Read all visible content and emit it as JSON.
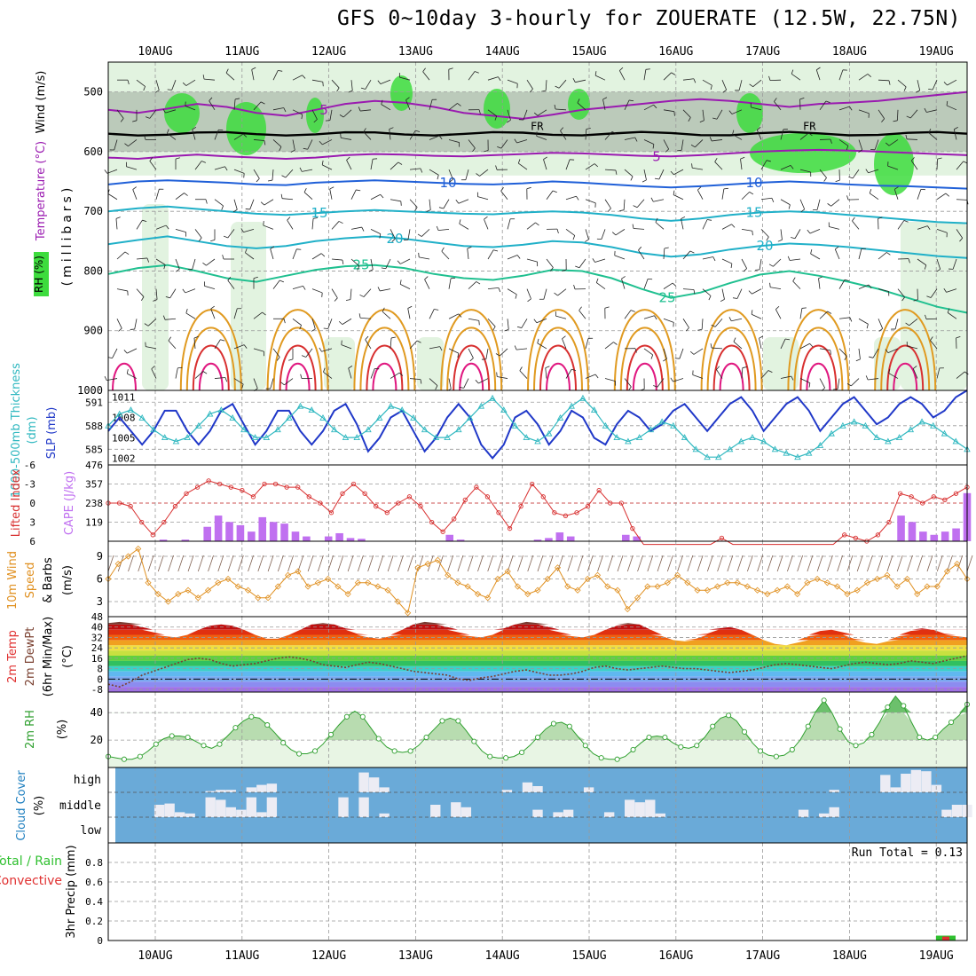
{
  "title": "GFS 0~10day 3-hourly for ZOUERATE (12.5W, 22.75N)",
  "colors": {
    "rh_green": "#3ddc3d",
    "rh_light": "#e2f3e0",
    "rh_grey": "#9aa89a",
    "temp_purple": "#9a1ab0",
    "temp_blue": "#2060d8",
    "temp_cyan": "#20b0c8",
    "temp_teal": "#20c090",
    "temp_orange": "#e09a20",
    "temp_red": "#d83030",
    "temp_pink": "#e01880",
    "slp_line": "#2038c8",
    "thickness_line": "#30b8c0",
    "lifted_line": "#d83030",
    "cape_bar": "#c070f0",
    "wind_line": "#e09020",
    "barb": "#806050",
    "cloud_bg": "#6aaad8",
    "cloud_bar": "#ececf4",
    "rh2m_line": "#30a030",
    "precip_green": "#30c030",
    "precip_red": "#e03030"
  },
  "chart_data": {
    "type": "meteogram",
    "days": [
      "10AUG",
      "11AUG",
      "12AUG",
      "13AUG",
      "14AUG",
      "15AUG",
      "16AUG",
      "17AUG",
      "18AUG",
      "19AUG"
    ],
    "run_total_label": "Run Total = 0.13",
    "panels": [
      {
        "id": "upper_air",
        "ylabel_parts": [
          "RH (%)",
          "Temperature (°C)",
          "Wind (m/s)",
          "(millibars)"
        ],
        "yticks": [
          500,
          600,
          700,
          800,
          900,
          1000
        ],
        "ylim": [
          450,
          1000
        ],
        "freezing_label": "FR",
        "freezing_level_mb": 570,
        "isotherms": [
          {
            "label": "5",
            "mb": [
              530,
              535,
              528,
              520,
              525,
              535,
              540,
              530,
              520,
              515,
              518,
              525,
              535,
              540,
              545,
              538,
              530,
              525,
              520,
              515,
              512,
              515,
              520,
              525,
              520,
              518,
              515,
              510,
              505,
              500
            ]
          },
          {
            "label": "5",
            "mb": [
              610,
              612,
              608,
              605,
              608,
              610,
              612,
              610,
              606,
              604,
              605,
              607,
              608,
              606,
              604,
              602,
              603,
              605,
              607,
              608,
              606,
              603,
              600,
              598,
              597,
              598,
              600,
              602,
              604,
              606
            ]
          },
          {
            "label": "10",
            "mb": [
              655,
              650,
              648,
              650,
              652,
              655,
              656,
              652,
              650,
              648,
              650,
              652,
              654,
              655,
              653,
              650,
              652,
              655,
              658,
              660,
              658,
              655,
              652,
              650,
              652,
              655,
              657,
              658,
              660,
              662
            ]
          },
          {
            "label": "15",
            "mb": [
              700,
              695,
              692,
              696,
              700,
              704,
              706,
              703,
              700,
              698,
              700,
              702,
              704,
              705,
              702,
              700,
              702,
              706,
              712,
              716,
              712,
              706,
              702,
              700,
              702,
              706,
              710,
              714,
              718,
              720
            ]
          },
          {
            "label": "20",
            "mb": [
              755,
              748,
              742,
              750,
              758,
              762,
              758,
              750,
              745,
              742,
              746,
              752,
              758,
              760,
              756,
              750,
              752,
              760,
              770,
              776,
              772,
              764,
              758,
              754,
              756,
              760,
              765,
              770,
              775,
              778
            ]
          },
          {
            "label": "25",
            "mb": [
              805,
              795,
              790,
              800,
              812,
              818,
              808,
              798,
              792,
              790,
              795,
              805,
              812,
              815,
              808,
              798,
              800,
              812,
              830,
              845,
              836,
              820,
              806,
              800,
              808,
              818,
              830,
              845,
              860,
              870
            ]
          }
        ],
        "rh_levels": [
          30,
          50
        ]
      },
      {
        "id": "slp_thickness",
        "left_ylabel": "1000-500mb Thickness (dm)",
        "right_ylabel": "SLP (mb)",
        "thickness_ticks": [
          585,
          588,
          591
        ],
        "slp_ticks": [
          1002,
          1005,
          1008,
          1011
        ],
        "thickness_range": [
          583,
          592.5
        ],
        "slp_range": [
          1001,
          1012
        ],
        "slp": [
          1006,
          1008,
          1006,
          1004,
          1006,
          1009,
          1009,
          1006,
          1004,
          1006,
          1009,
          1010,
          1007,
          1004,
          1006,
          1009,
          1009,
          1006,
          1004,
          1006,
          1009,
          1010,
          1007,
          1003,
          1005,
          1008,
          1009,
          1006,
          1003,
          1005,
          1008,
          1010,
          1008,
          1004,
          1002,
          1004,
          1008,
          1009,
          1007,
          1004,
          1006,
          1009,
          1008,
          1005,
          1004,
          1007,
          1009,
          1008,
          1006,
          1007,
          1009,
          1010,
          1008,
          1006,
          1008,
          1010,
          1011,
          1009,
          1006,
          1008,
          1010,
          1011,
          1009,
          1006,
          1008,
          1010,
          1011,
          1009,
          1007,
          1008,
          1010,
          1011,
          1010,
          1008,
          1009,
          1011,
          1012
        ],
        "thickness": [
          588,
          589.5,
          590,
          589,
          587.5,
          586.5,
          586,
          586.5,
          588,
          589.5,
          590,
          589,
          587.5,
          586.5,
          586.5,
          587.5,
          589,
          590.5,
          590,
          589,
          587.5,
          586.5,
          586.5,
          587.5,
          589,
          590.5,
          590,
          589,
          587.5,
          586.5,
          586.5,
          587.5,
          589,
          590.5,
          591.5,
          590,
          588,
          586.5,
          586,
          587,
          589,
          590.5,
          591.5,
          590,
          588,
          586.5,
          586,
          586.5,
          587.5,
          588.5,
          588,
          586.5,
          585,
          584,
          584,
          585,
          586,
          586.5,
          586,
          585,
          584.5,
          584,
          584.5,
          585.5,
          587,
          588,
          588.5,
          588,
          586.5,
          586,
          586.5,
          587.5,
          588.5,
          588,
          587,
          586,
          585
        ]
      },
      {
        "id": "stability",
        "left_ylabel": "Lifted Index",
        "right_ylabel": "CAPE (J/kg)",
        "li_ticks": [
          -6,
          -3,
          0,
          3,
          6
        ],
        "cape_ticks": [
          119,
          238,
          357,
          476
        ],
        "cape_range": [
          0,
          476
        ],
        "lifted_index": [
          0,
          0,
          0.5,
          3,
          5,
          3,
          0.5,
          -1.5,
          -2.5,
          -3.5,
          -3,
          -2.5,
          -2,
          -1,
          -3,
          -3,
          -2.5,
          -2.5,
          -1,
          0,
          1.5,
          -1.5,
          -3,
          -1.5,
          0.5,
          1.5,
          0,
          -1,
          0.5,
          3,
          4.5,
          2.5,
          -0.5,
          -2.5,
          -1,
          1.5,
          4,
          0.5,
          -3,
          -1,
          1.5,
          2,
          1.5,
          0.5,
          -2,
          0,
          0,
          4,
          7,
          7.5,
          7,
          6.5,
          6.5,
          7,
          7,
          5.5,
          7,
          7.5,
          7.5,
          7,
          7.5,
          7,
          6.5,
          7,
          7.5,
          6.5,
          5,
          5.5,
          6,
          5,
          3,
          -1.5,
          -1,
          0,
          -1,
          -0.5,
          -1.5,
          -2.5
        ],
        "cape": [
          0,
          0,
          0,
          0,
          0,
          10,
          0,
          10,
          0,
          90,
          160,
          120,
          100,
          60,
          150,
          120,
          110,
          60,
          30,
          0,
          30,
          50,
          20,
          15,
          0,
          0,
          0,
          0,
          0,
          0,
          0,
          40,
          10,
          0,
          0,
          0,
          0,
          0,
          0,
          10,
          20,
          55,
          30,
          0,
          0,
          0,
          0,
          40,
          30,
          0,
          0,
          0,
          0,
          0,
          0,
          0,
          0,
          0,
          0,
          0,
          0,
          0,
          0,
          0,
          0,
          0,
          0,
          0,
          0,
          0,
          0,
          0,
          160,
          120,
          60,
          40,
          60,
          80,
          300
        ]
      },
      {
        "id": "wind10m",
        "ylabel_parts": [
          "10m Wind",
          "Speed",
          "& Barbs",
          "(m/s)"
        ],
        "yticks": [
          3,
          6,
          9
        ],
        "ylim": [
          1,
          11
        ],
        "speed": [
          6,
          8,
          9,
          10,
          5.5,
          4,
          3,
          4,
          4.5,
          3.5,
          4.5,
          5.5,
          6,
          5,
          4.5,
          3.5,
          3.5,
          5,
          6.5,
          7,
          5,
          5.5,
          6,
          5,
          4,
          5.5,
          5.5,
          5,
          4.5,
          3,
          1.5,
          7.5,
          8,
          8.5,
          6.5,
          5.5,
          5,
          4,
          3.5,
          6,
          7,
          5,
          4,
          4.5,
          6,
          7.5,
          5,
          4.5,
          6,
          6.5,
          5,
          4.5,
          2,
          3.5,
          5,
          5,
          5.5,
          6.5,
          5.5,
          4.5,
          4.5,
          5,
          5.5,
          5.5,
          5,
          4.5,
          4,
          4.5,
          5,
          4,
          5.5,
          6,
          5.5,
          5,
          4,
          4.5,
          5.5,
          6,
          6.5,
          5,
          6,
          4,
          5,
          5,
          7,
          8,
          6
        ]
      },
      {
        "id": "temp2m",
        "ylabel_parts": [
          "2m Temp",
          "2m DewPt",
          "(6hr Min/Max)",
          "(°C)"
        ],
        "yticks": [
          -8,
          0,
          8,
          16,
          24,
          32,
          40,
          48
        ],
        "ylim": [
          -10,
          48
        ],
        "band_step": 4,
        "temperature": [
          43,
          44,
          43,
          40,
          36,
          33,
          32,
          34,
          38,
          41,
          42,
          41,
          38,
          34,
          31,
          31,
          34,
          38,
          42,
          43,
          42,
          39,
          35,
          32,
          31,
          33,
          38,
          42,
          44,
          43,
          40,
          36,
          33,
          32,
          34,
          39,
          42,
          44,
          43,
          40,
          36,
          33,
          32,
          34,
          38,
          41,
          43,
          42,
          38,
          33,
          30,
          29,
          31,
          35,
          39,
          40,
          38,
          34,
          30,
          27,
          26,
          28,
          33,
          37,
          38,
          36,
          31,
          28,
          27,
          29,
          33,
          37,
          39,
          38,
          35,
          33,
          32
        ],
        "dewpoint": [
          -4,
          -6,
          -2,
          3,
          6,
          9,
          12,
          15,
          16,
          15,
          12,
          10,
          11,
          12,
          14,
          16,
          17,
          16,
          14,
          11,
          10,
          9,
          11,
          13,
          12,
          10,
          8,
          6,
          5,
          4,
          3,
          0,
          -1,
          1,
          2,
          4,
          6,
          7,
          5,
          3,
          3,
          4,
          6,
          9,
          10,
          8,
          7,
          8,
          9,
          10,
          9,
          8,
          8,
          7,
          6,
          5,
          6,
          7,
          9,
          11,
          12,
          11,
          10,
          9,
          8,
          10,
          12,
          13,
          12,
          11,
          12,
          14,
          13,
          12,
          14,
          16,
          18
        ]
      },
      {
        "id": "rh2m",
        "ylabel": "2m RH",
        "yunit": "(%)",
        "yticks": [
          20,
          40
        ],
        "ylim": [
          0,
          55
        ],
        "rh": [
          8,
          7,
          6,
          6,
          8,
          12,
          17,
          21,
          23,
          23,
          22,
          19,
          16,
          14,
          17,
          23,
          29,
          34,
          37,
          36,
          31,
          25,
          18,
          13,
          10,
          10,
          12,
          17,
          24,
          31,
          37,
          41,
          37,
          29,
          21,
          15,
          12,
          11,
          12,
          16,
          22,
          28,
          34,
          36,
          34,
          27,
          19,
          12,
          8,
          7,
          7,
          8,
          11,
          16,
          22,
          28,
          32,
          33,
          30,
          23,
          16,
          10,
          7,
          6,
          6,
          8,
          13,
          18,
          22,
          23,
          22,
          18,
          15,
          14,
          16,
          22,
          30,
          36,
          38,
          34,
          26,
          18,
          12,
          9,
          8,
          9,
          13,
          20,
          30,
          41,
          49,
          40,
          28,
          19,
          16,
          18,
          24,
          33,
          44,
          52,
          45,
          33,
          22,
          20,
          22,
          28,
          33,
          38,
          46
        ],
        "shade_levels": [
          20,
          40
        ]
      },
      {
        "id": "cloud",
        "ylabel": "Cloud Cover",
        "yunit": "(%)",
        "levels": [
          "high",
          "middle",
          "low"
        ],
        "high": [
          0,
          0,
          0,
          0,
          0,
          0,
          0,
          0,
          0,
          0,
          5,
          10,
          10,
          0,
          20,
          30,
          35,
          0,
          0,
          0,
          0,
          0,
          0,
          0,
          0,
          80,
          60,
          20,
          0,
          0,
          0,
          0,
          0,
          0,
          0,
          0,
          0,
          0,
          0,
          10,
          0,
          40,
          25,
          0,
          0,
          0,
          0,
          20,
          0,
          0,
          0,
          0,
          0,
          0,
          0,
          0,
          0,
          0,
          0,
          0,
          0,
          0,
          0,
          0,
          0,
          0,
          0,
          0,
          0,
          0,
          0,
          10,
          0,
          0,
          0,
          0,
          70,
          20,
          75,
          90,
          85,
          30,
          0,
          0,
          0
        ],
        "middle": [
          0,
          0,
          0,
          0,
          0,
          50,
          55,
          20,
          15,
          0,
          80,
          70,
          40,
          30,
          80,
          20,
          80,
          0,
          0,
          0,
          0,
          0,
          0,
          80,
          0,
          80,
          0,
          15,
          0,
          0,
          0,
          0,
          50,
          0,
          60,
          40,
          0,
          0,
          0,
          0,
          0,
          0,
          30,
          0,
          20,
          30,
          0,
          0,
          0,
          20,
          0,
          70,
          60,
          70,
          15,
          0,
          0,
          0,
          0,
          0,
          0,
          0,
          0,
          0,
          0,
          0,
          0,
          0,
          30,
          0,
          15,
          40,
          0,
          0,
          0,
          0,
          0,
          0,
          0,
          0,
          0,
          0,
          30,
          50,
          50
        ]
      },
      {
        "id": "precip",
        "ylabel_parts": [
          "3hr Precip (mm)",
          "Total / Rain",
          "Convective"
        ],
        "yticks": [
          0,
          0.2,
          0.4,
          0.6,
          0.8
        ],
        "ylim": [
          0,
          1.0
        ],
        "total_last_step": 0.05,
        "convective_last_step": 0.04
      }
    ]
  }
}
